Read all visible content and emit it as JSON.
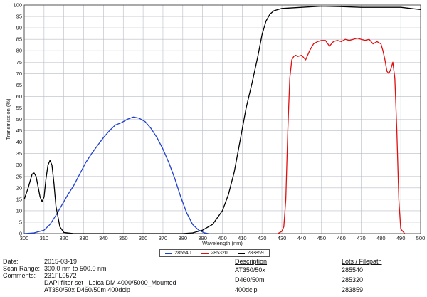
{
  "chart_data": {
    "type": "line",
    "xlabel": "Wavelength (nm)",
    "ylabel": "Transmission (%)",
    "xlim": [
      300,
      500
    ],
    "ylim": [
      0,
      100
    ],
    "xticks": [
      300,
      310,
      320,
      330,
      340,
      350,
      360,
      370,
      380,
      390,
      400,
      410,
      420,
      430,
      440,
      450,
      460,
      470,
      480,
      490,
      500
    ],
    "yticks": [
      0,
      5,
      10,
      15,
      20,
      25,
      30,
      35,
      40,
      45,
      50,
      55,
      60,
      65,
      70,
      75,
      80,
      85,
      90,
      95,
      100
    ],
    "grid": true,
    "legend_position": "bottom-center",
    "series": [
      {
        "name": "285540",
        "color": "#1f3fd0",
        "x": [
          300,
          305,
          310,
          313,
          316,
          319,
          322,
          325,
          328,
          331,
          334,
          337,
          340,
          343,
          346,
          349,
          352,
          355,
          358,
          361,
          364,
          367,
          370,
          373,
          376,
          379,
          382,
          385,
          388,
          391,
          393
        ],
        "y": [
          0,
          0.3,
          1.5,
          4,
          8,
          12.5,
          17,
          21,
          26,
          31,
          35,
          38.5,
          42,
          45,
          47.5,
          48.5,
          50,
          51,
          50.5,
          49,
          46,
          42,
          37,
          31,
          24,
          16,
          9,
          4,
          1.5,
          0.3,
          0
        ]
      },
      {
        "name": "285320",
        "color": "#e01010",
        "x": [
          428,
          430,
          431,
          432,
          433,
          434,
          435,
          436,
          437,
          438,
          440,
          442,
          444,
          446,
          448,
          450,
          452,
          454,
          456,
          458,
          460,
          462,
          464,
          466,
          468,
          470,
          472,
          474,
          476,
          478,
          480,
          481,
          482,
          483,
          484,
          485,
          486,
          487,
          488,
          489,
          490,
          492
        ],
        "y": [
          0,
          1,
          3,
          15,
          45,
          68,
          76,
          77.5,
          78,
          77.5,
          78,
          76,
          80,
          83,
          84,
          84.5,
          84.5,
          82,
          84,
          84.5,
          84,
          85,
          84.5,
          85,
          85.5,
          85,
          84.5,
          85,
          83,
          84,
          83,
          80,
          76,
          71,
          70,
          72,
          75,
          68,
          45,
          15,
          2,
          0
        ]
      },
      {
        "name": "283859",
        "color": "#000000",
        "x": [
          300,
          302,
          304,
          305,
          306,
          308,
          309,
          310,
          311,
          312,
          313,
          314,
          315,
          316,
          318,
          320,
          325,
          330,
          340,
          350,
          360,
          370,
          380,
          385,
          390,
          395,
          400,
          403,
          406,
          409,
          412,
          415,
          418,
          420,
          422,
          424,
          426,
          428,
          430,
          440,
          450,
          460,
          470,
          480,
          490,
          495,
          500
        ],
        "y": [
          15,
          20,
          26,
          26.5,
          25,
          16,
          14,
          16,
          24,
          30,
          32,
          30,
          22,
          12,
          3,
          0.5,
          0,
          0,
          0,
          0,
          0,
          0,
          0,
          0.3,
          1.5,
          4,
          10,
          17,
          27,
          41,
          55,
          66,
          78,
          87,
          93,
          96,
          97.5,
          98,
          98.5,
          99,
          99.5,
          99.3,
          99,
          99,
          99,
          98.5,
          98
        ]
      }
    ]
  },
  "info": {
    "date_label": "Date:",
    "date_value": "2015-03-19",
    "scan_label": "Scan Range:",
    "scan_value": "300.0   nm to    500.0    nm",
    "comments_label": "Comments:",
    "comments_line1": "231FL0572",
    "comments_line2": "DAPI filter set _Leica DM 4000/5000_Mounted",
    "comments_line3": "AT350/50x  D460/50m  400dclp",
    "description_header": "Description",
    "description_items": [
      "AT350/50x",
      "D460/50m",
      "400dclp"
    ],
    "lots_header": "Lots / Filepath",
    "lots_items": [
      "285540",
      "285320",
      "283859"
    ]
  }
}
